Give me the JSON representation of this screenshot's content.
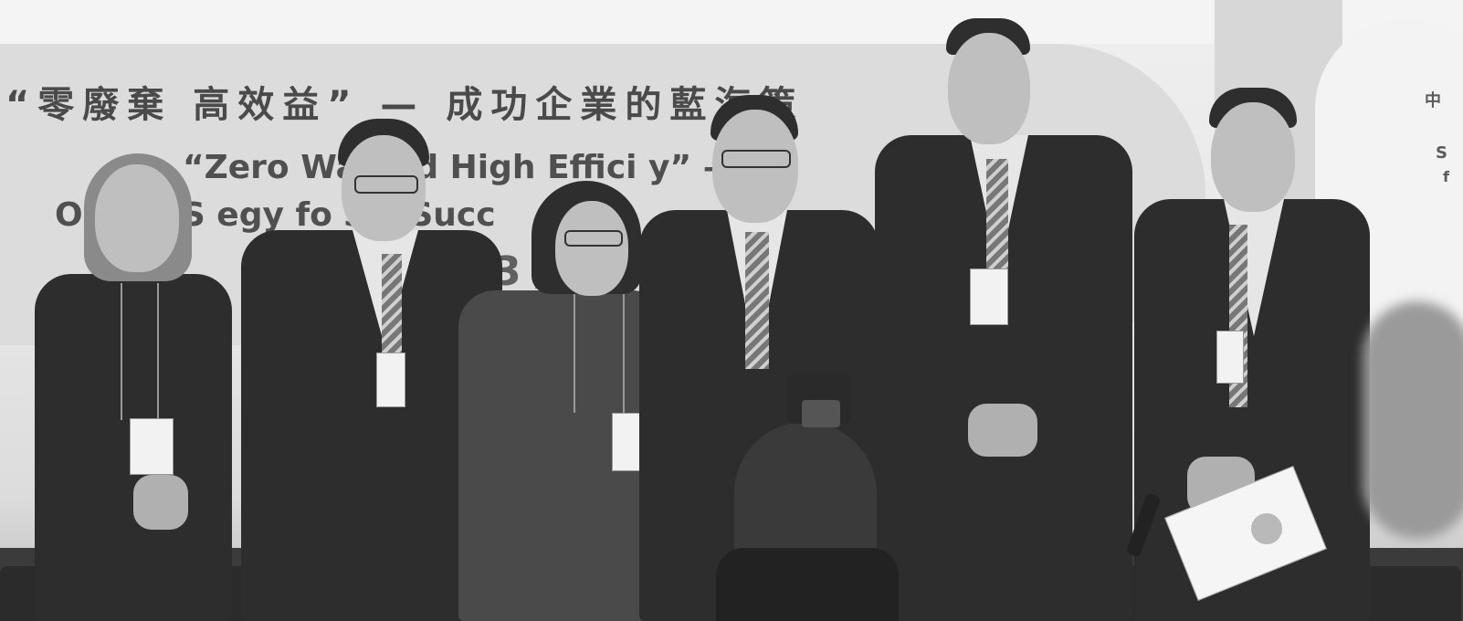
{
  "image": {
    "mode": "grayscale",
    "scene": "six people standing in front of a conference banner with a photographer in the foreground"
  },
  "banner": {
    "cjk_title": "“零廢棄 高效益” — 成功企業的藍海策",
    "english_line1": "“Zero Wa   and High Effici   y” –",
    "english_line2": "   Ocean S   egy fo   sin   Succ",
    "date_fragment": "3 /",
    "right_edge_cjk_fragment": "中",
    "right_edge_letter_1": "S",
    "right_edge_letter_2": "f"
  },
  "people": [
    {
      "label": "woman-left"
    },
    {
      "label": "man-2"
    },
    {
      "label": "woman-center"
    },
    {
      "label": "man-4"
    },
    {
      "label": "man-tall"
    },
    {
      "label": "man-right"
    }
  ]
}
